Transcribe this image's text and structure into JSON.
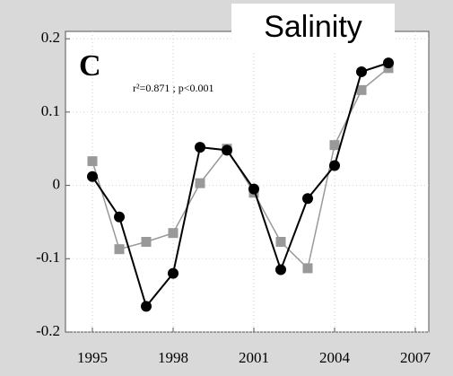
{
  "chart_data": {
    "type": "line",
    "title": "Salinity",
    "panel_label": "C",
    "annotation": "r²=0.871 ; p<0.001",
    "x": [
      1995,
      1996,
      1997,
      1998,
      1999,
      2000,
      2001,
      2002,
      2003,
      2004,
      2005,
      2006
    ],
    "series": [
      {
        "color": "#999999",
        "marker": "square",
        "values": [
          0.033,
          -0.087,
          -0.077,
          -0.065,
          0.003,
          0.05,
          -0.01,
          -0.077,
          -0.113,
          0.055,
          0.13,
          0.16
        ]
      },
      {
        "color": "#000000",
        "marker": "circle",
        "values": [
          0.012,
          -0.043,
          -0.165,
          -0.12,
          0.052,
          0.048,
          -0.005,
          -0.115,
          -0.018,
          0.027,
          0.155,
          0.167
        ]
      }
    ],
    "xlim": [
      1994,
      2007.5
    ],
    "xticks": [
      1995,
      1998,
      2001,
      2004,
      2007
    ],
    "ylim": [
      -0.2,
      0.21
    ],
    "yticks": [
      -0.2,
      -0.1,
      0,
      0.1,
      0.2
    ],
    "grid": true
  }
}
